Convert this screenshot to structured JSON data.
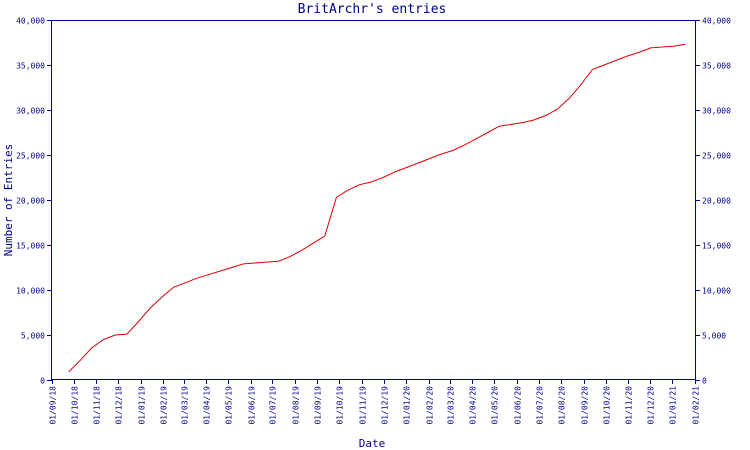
{
  "chart_data": {
    "type": "line",
    "title": "BritArchr's entries",
    "xlabel": "Date",
    "ylabel": "Number of Entries",
    "ylim": [
      0,
      40000
    ],
    "y_ticks": [
      0,
      5000,
      10000,
      15000,
      20000,
      25000,
      30000,
      35000,
      40000
    ],
    "y_tick_labels": [
      "0",
      "5,000",
      "10,000",
      "15,000",
      "20,000",
      "25,000",
      "30,000",
      "35,000",
      "40,000"
    ],
    "y_axis_both_sides": true,
    "x_ticks": [
      "01/09/18",
      "01/10/18",
      "01/11/18",
      "01/12/18",
      "01/01/19",
      "01/02/19",
      "01/03/19",
      "01/04/19",
      "01/05/19",
      "01/06/19",
      "01/07/19",
      "01/08/19",
      "01/09/19",
      "01/10/19",
      "01/11/19",
      "01/12/19",
      "01/01/20",
      "01/02/20",
      "01/03/20",
      "01/04/20",
      "01/05/20",
      "01/06/20",
      "01/07/20",
      "01/08/20",
      "01/09/20",
      "01/10/20",
      "01/11/20",
      "01/12/20",
      "01/01/21",
      "01/02/21"
    ],
    "xlim": [
      "2018-09-01",
      "2021-02-01"
    ],
    "grid": false,
    "legend": "none",
    "line_color": "#e00000",
    "axis_color": "#00008b",
    "series": [
      {
        "x": [
          "2018-09-24",
          "2018-10-10",
          "2018-10-26",
          "2018-11-11",
          "2018-11-27",
          "2018-12-13",
          "2018-12-29",
          "2019-01-14",
          "2019-01-30",
          "2019-02-15",
          "2019-03-03",
          "2019-03-19",
          "2019-04-04",
          "2019-04-20",
          "2019-05-06",
          "2019-05-22",
          "2019-06-07",
          "2019-06-23",
          "2019-07-09",
          "2019-07-25",
          "2019-08-10",
          "2019-08-26",
          "2019-09-11",
          "2019-09-27",
          "2019-10-13",
          "2019-10-29",
          "2019-11-14",
          "2019-11-30",
          "2019-12-16",
          "2020-01-01",
          "2020-01-17",
          "2020-02-02",
          "2020-02-18",
          "2020-03-05",
          "2020-03-21",
          "2020-04-06",
          "2020-04-22",
          "2020-05-08",
          "2020-05-24",
          "2020-06-09",
          "2020-06-25",
          "2020-07-11",
          "2020-07-27",
          "2020-08-12",
          "2020-08-28",
          "2020-09-13",
          "2020-09-29",
          "2020-10-15",
          "2020-10-31",
          "2020-11-16",
          "2020-12-02",
          "2020-12-18",
          "2021-01-03",
          "2021-01-19"
        ],
        "y": [
          900,
          2200,
          3600,
          4500,
          5000,
          5100,
          6500,
          8000,
          9200,
          10300,
          10800,
          11300,
          11700,
          12100,
          12500,
          12900,
          13000,
          13100,
          13200,
          13700,
          14400,
          15200,
          16000,
          20300,
          21100,
          21700,
          22000,
          22500,
          23100,
          23600,
          24100,
          24600,
          25100,
          25500,
          26100,
          26800,
          27500,
          28200,
          28400,
          28600,
          28900,
          29400,
          30100,
          31300,
          32800,
          34500,
          35000,
          35500,
          36000,
          36400,
          36900,
          37000,
          37100,
          37300
        ]
      }
    ]
  }
}
